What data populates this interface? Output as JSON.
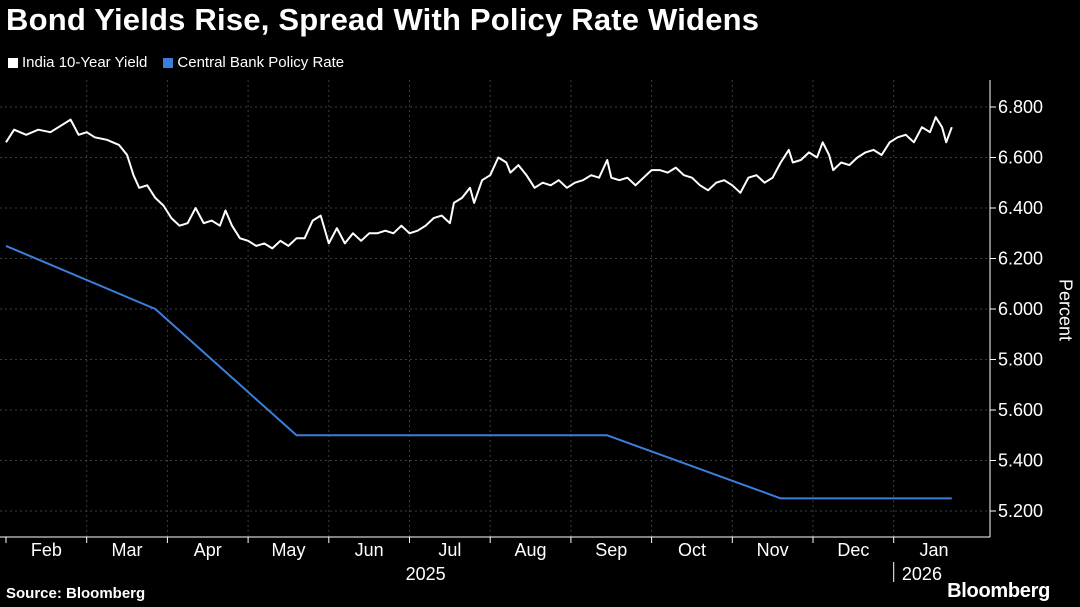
{
  "colors": {
    "background": "#000000",
    "yield": "#ffffff",
    "policy": "#3a7fdc",
    "grid": "#3c3c3c"
  },
  "chart_data": {
    "type": "line",
    "title": "Bond Yields Rise, Spread With Policy Rate Widens",
    "ylabel": "Percent",
    "xlabel": "",
    "ylim": [
      5.1,
      6.9
    ],
    "yticks": [
      5.2,
      5.4,
      5.6,
      5.8,
      6.0,
      6.2,
      6.4,
      6.6,
      6.8
    ],
    "ytick_labels": [
      "5.200",
      "5.400",
      "5.600",
      "5.800",
      "6.000",
      "6.200",
      "6.400",
      "6.600",
      "6.800"
    ],
    "xlim_months": [
      0,
      11.9
    ],
    "months": [
      "Feb",
      "Mar",
      "Apr",
      "May",
      "Jun",
      "Jul",
      "Aug",
      "Sep",
      "Oct",
      "Nov",
      "Dec",
      "Jan"
    ],
    "years": [
      "2025",
      "2026"
    ],
    "legend_position": "top-left",
    "series": [
      {
        "name": "India 10-Year Yield",
        "color": "#ffffff",
        "points": [
          [
            0.0,
            6.66
          ],
          [
            0.1,
            6.71
          ],
          [
            0.25,
            6.69
          ],
          [
            0.4,
            6.71
          ],
          [
            0.55,
            6.7
          ],
          [
            0.7,
            6.73
          ],
          [
            0.8,
            6.75
          ],
          [
            0.9,
            6.69
          ],
          [
            1.0,
            6.7
          ],
          [
            1.1,
            6.68
          ],
          [
            1.25,
            6.67
          ],
          [
            1.4,
            6.65
          ],
          [
            1.5,
            6.61
          ],
          [
            1.58,
            6.53
          ],
          [
            1.65,
            6.48
          ],
          [
            1.75,
            6.49
          ],
          [
            1.85,
            6.44
          ],
          [
            1.95,
            6.41
          ],
          [
            2.05,
            6.36
          ],
          [
            2.15,
            6.33
          ],
          [
            2.25,
            6.34
          ],
          [
            2.35,
            6.4
          ],
          [
            2.45,
            6.34
          ],
          [
            2.55,
            6.35
          ],
          [
            2.65,
            6.33
          ],
          [
            2.72,
            6.39
          ],
          [
            2.8,
            6.33
          ],
          [
            2.9,
            6.28
          ],
          [
            3.0,
            6.27
          ],
          [
            3.1,
            6.25
          ],
          [
            3.2,
            6.26
          ],
          [
            3.3,
            6.24
          ],
          [
            3.4,
            6.27
          ],
          [
            3.5,
            6.25
          ],
          [
            3.6,
            6.28
          ],
          [
            3.7,
            6.28
          ],
          [
            3.8,
            6.35
          ],
          [
            3.9,
            6.37
          ],
          [
            4.0,
            6.26
          ],
          [
            4.1,
            6.32
          ],
          [
            4.2,
            6.26
          ],
          [
            4.3,
            6.3
          ],
          [
            4.4,
            6.27
          ],
          [
            4.5,
            6.3
          ],
          [
            4.6,
            6.3
          ],
          [
            4.7,
            6.31
          ],
          [
            4.8,
            6.3
          ],
          [
            4.9,
            6.33
          ],
          [
            5.0,
            6.3
          ],
          [
            5.1,
            6.31
          ],
          [
            5.2,
            6.33
          ],
          [
            5.3,
            6.36
          ],
          [
            5.4,
            6.37
          ],
          [
            5.5,
            6.34
          ],
          [
            5.55,
            6.42
          ],
          [
            5.65,
            6.44
          ],
          [
            5.75,
            6.48
          ],
          [
            5.8,
            6.42
          ],
          [
            5.9,
            6.51
          ],
          [
            6.0,
            6.53
          ],
          [
            6.1,
            6.6
          ],
          [
            6.2,
            6.58
          ],
          [
            6.25,
            6.54
          ],
          [
            6.35,
            6.57
          ],
          [
            6.45,
            6.53
          ],
          [
            6.55,
            6.48
          ],
          [
            6.65,
            6.5
          ],
          [
            6.75,
            6.49
          ],
          [
            6.85,
            6.51
          ],
          [
            6.95,
            6.48
          ],
          [
            7.05,
            6.5
          ],
          [
            7.15,
            6.51
          ],
          [
            7.25,
            6.53
          ],
          [
            7.35,
            6.52
          ],
          [
            7.45,
            6.59
          ],
          [
            7.5,
            6.52
          ],
          [
            7.6,
            6.51
          ],
          [
            7.7,
            6.52
          ],
          [
            7.8,
            6.49
          ],
          [
            7.9,
            6.52
          ],
          [
            8.0,
            6.55
          ],
          [
            8.1,
            6.55
          ],
          [
            8.2,
            6.54
          ],
          [
            8.3,
            6.56
          ],
          [
            8.4,
            6.53
          ],
          [
            8.5,
            6.52
          ],
          [
            8.6,
            6.49
          ],
          [
            8.7,
            6.47
          ],
          [
            8.8,
            6.5
          ],
          [
            8.9,
            6.51
          ],
          [
            9.0,
            6.49
          ],
          [
            9.1,
            6.46
          ],
          [
            9.2,
            6.52
          ],
          [
            9.3,
            6.53
          ],
          [
            9.4,
            6.5
          ],
          [
            9.5,
            6.52
          ],
          [
            9.6,
            6.58
          ],
          [
            9.7,
            6.63
          ],
          [
            9.75,
            6.58
          ],
          [
            9.85,
            6.59
          ],
          [
            9.95,
            6.62
          ],
          [
            10.05,
            6.6
          ],
          [
            10.12,
            6.66
          ],
          [
            10.2,
            6.61
          ],
          [
            10.25,
            6.55
          ],
          [
            10.35,
            6.58
          ],
          [
            10.45,
            6.57
          ],
          [
            10.55,
            6.6
          ],
          [
            10.65,
            6.62
          ],
          [
            10.75,
            6.63
          ],
          [
            10.85,
            6.61
          ],
          [
            10.95,
            6.66
          ],
          [
            11.05,
            6.68
          ],
          [
            11.15,
            6.69
          ],
          [
            11.25,
            6.66
          ],
          [
            11.35,
            6.72
          ],
          [
            11.45,
            6.7
          ],
          [
            11.52,
            6.76
          ],
          [
            11.6,
            6.72
          ],
          [
            11.65,
            6.66
          ],
          [
            11.72,
            6.72
          ]
        ]
      },
      {
        "name": "Central Bank Policy Rate",
        "color": "#3a7fdc",
        "points": [
          [
            0.0,
            6.25
          ],
          [
            1.85,
            6.0
          ],
          [
            3.6,
            5.5
          ],
          [
            7.45,
            5.5
          ],
          [
            9.6,
            5.25
          ],
          [
            11.72,
            5.25
          ]
        ]
      }
    ]
  },
  "footer": {
    "source": "Source: Bloomberg",
    "brand": "Bloomberg"
  }
}
